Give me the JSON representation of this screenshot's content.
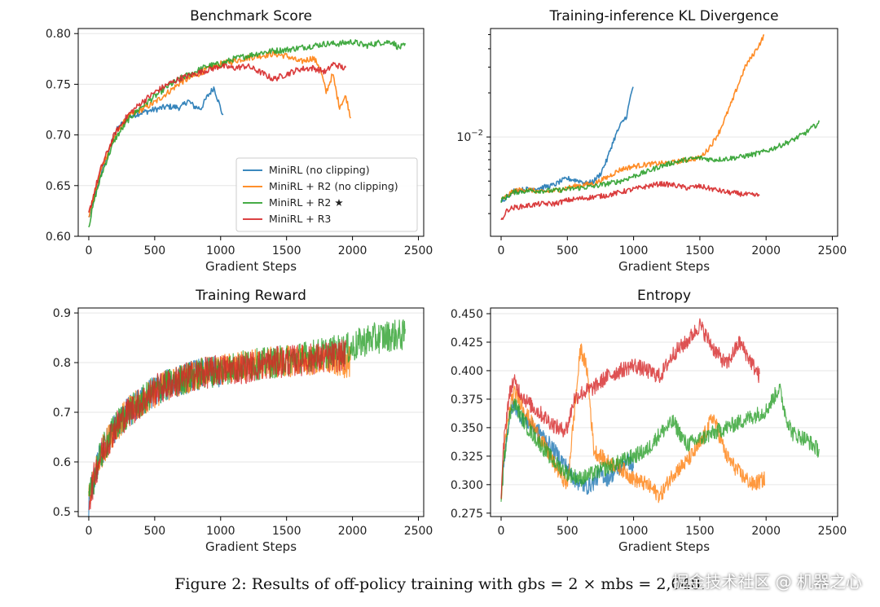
{
  "figure_caption": "Figure 2: Results of off-policy training with gbs = 2 × mbs = 2,048.",
  "watermark": "掘金技术社区 @ 机器之心",
  "colors": {
    "MiniRL (no clipping)": "#1f77b4",
    "MiniRL + R2 (no clipping)": "#ff7f0e",
    "MiniRL + R2 ★": "#2ca02c",
    "MiniRL + R3": "#d62728"
  },
  "chart_data": [
    {
      "type": "line",
      "title": "Benchmark Score",
      "xlabel": "Gradient Steps",
      "ylabel": "",
      "xlim": [
        -80,
        2540
      ],
      "ylim": [
        0.6,
        0.805
      ],
      "xticks": [
        0,
        500,
        1000,
        1500,
        2000,
        2500
      ],
      "yticks": [
        0.6,
        0.65,
        0.7,
        0.75,
        0.8
      ],
      "ytick_labels": [
        "0.60",
        "0.65",
        "0.70",
        "0.75",
        "0.80"
      ],
      "grid": "horizontal",
      "legend": {
        "position": "lower-right",
        "entries": [
          "MiniRL (no clipping)",
          "MiniRL + R2 (no clipping)",
          "MiniRL + R2 ★",
          "MiniRL + R3"
        ]
      },
      "series": [
        {
          "name": "MiniRL (no clipping)",
          "x": [
            0,
            50,
            100,
            150,
            200,
            300,
            400,
            500,
            600,
            700,
            750,
            800,
            850,
            900,
            950,
            1000,
            1020
          ],
          "y": [
            0.618,
            0.642,
            0.665,
            0.682,
            0.703,
            0.718,
            0.722,
            0.725,
            0.728,
            0.727,
            0.734,
            0.728,
            0.726,
            0.738,
            0.747,
            0.726,
            0.718
          ]
        },
        {
          "name": "MiniRL + R2 (no clipping)",
          "x": [
            0,
            50,
            100,
            150,
            200,
            300,
            400,
            500,
            600,
            700,
            800,
            900,
            1000,
            1100,
            1200,
            1300,
            1400,
            1500,
            1600,
            1700,
            1750,
            1800,
            1850,
            1900,
            1950,
            1990
          ],
          "y": [
            0.62,
            0.645,
            0.668,
            0.685,
            0.7,
            0.718,
            0.725,
            0.732,
            0.742,
            0.752,
            0.758,
            0.765,
            0.77,
            0.773,
            0.776,
            0.778,
            0.78,
            0.778,
            0.772,
            0.776,
            0.768,
            0.742,
            0.76,
            0.728,
            0.738,
            0.715
          ]
        },
        {
          "name": "MiniRL + R2 ★",
          "x": [
            0,
            50,
            100,
            150,
            200,
            300,
            400,
            500,
            600,
            700,
            800,
            900,
            1000,
            1100,
            1200,
            1300,
            1400,
            1500,
            1600,
            1700,
            1800,
            1900,
            2000,
            2100,
            2200,
            2300,
            2350,
            2400
          ],
          "y": [
            0.61,
            0.64,
            0.662,
            0.68,
            0.696,
            0.715,
            0.728,
            0.738,
            0.748,
            0.756,
            0.762,
            0.768,
            0.77,
            0.775,
            0.778,
            0.781,
            0.783,
            0.784,
            0.786,
            0.788,
            0.79,
            0.79,
            0.792,
            0.788,
            0.791,
            0.792,
            0.786,
            0.788
          ]
        },
        {
          "name": "MiniRL + R3",
          "x": [
            0,
            50,
            100,
            150,
            200,
            300,
            400,
            500,
            600,
            700,
            800,
            900,
            1000,
            1100,
            1200,
            1300,
            1400,
            1500,
            1600,
            1700,
            1800,
            1850,
            1900,
            1950
          ],
          "y": [
            0.622,
            0.648,
            0.67,
            0.686,
            0.702,
            0.72,
            0.732,
            0.742,
            0.75,
            0.756,
            0.76,
            0.764,
            0.768,
            0.766,
            0.768,
            0.762,
            0.755,
            0.76,
            0.765,
            0.766,
            0.762,
            0.77,
            0.768,
            0.765
          ]
        }
      ]
    },
    {
      "type": "line",
      "title": "Training-inference KL Divergence",
      "xlabel": "Gradient Steps",
      "ylabel": "",
      "yscale": "log",
      "xlim": [
        -80,
        2540
      ],
      "ylim": [
        0.0021,
        0.055
      ],
      "xticks": [
        0,
        500,
        1000,
        1500,
        2000,
        2500
      ],
      "yticks": [
        0.01
      ],
      "ytick_labels": [
        "10^-2"
      ],
      "grid": "horizontal",
      "series": [
        {
          "name": "MiniRL (no clipping)",
          "x": [
            0,
            50,
            100,
            200,
            300,
            400,
            450,
            500,
            550,
            600,
            650,
            700,
            750,
            800,
            850,
            900,
            950,
            1000
          ],
          "y": [
            0.0036,
            0.004,
            0.0043,
            0.0044,
            0.0045,
            0.0047,
            0.005,
            0.0052,
            0.0051,
            0.005,
            0.0048,
            0.005,
            0.0056,
            0.007,
            0.0095,
            0.012,
            0.014,
            0.023
          ]
        },
        {
          "name": "MiniRL + R2 (no clipping)",
          "x": [
            0,
            100,
            200,
            300,
            400,
            500,
            600,
            700,
            800,
            900,
            1000,
            1100,
            1200,
            1300,
            1400,
            1500,
            1550,
            1600,
            1650,
            1700,
            1750,
            1800,
            1850,
            1900,
            1950,
            1990
          ],
          "y": [
            0.0037,
            0.0043,
            0.0044,
            0.0042,
            0.0043,
            0.0045,
            0.0047,
            0.0048,
            0.0053,
            0.006,
            0.0063,
            0.0065,
            0.0066,
            0.0067,
            0.007,
            0.0072,
            0.008,
            0.0092,
            0.011,
            0.014,
            0.018,
            0.024,
            0.031,
            0.036,
            0.043,
            0.05
          ]
        },
        {
          "name": "MiniRL + R2 ★",
          "x": [
            0,
            100,
            200,
            300,
            400,
            500,
            600,
            700,
            800,
            900,
            1000,
            1100,
            1200,
            1300,
            1400,
            1500,
            1600,
            1700,
            1800,
            1900,
            2000,
            2100,
            2200,
            2300,
            2400
          ],
          "y": [
            0.0037,
            0.0042,
            0.0043,
            0.0043,
            0.0043,
            0.0044,
            0.0045,
            0.0046,
            0.0048,
            0.005,
            0.0054,
            0.0058,
            0.0063,
            0.0067,
            0.007,
            0.0072,
            0.007,
            0.0071,
            0.0073,
            0.0076,
            0.008,
            0.0087,
            0.0095,
            0.0107,
            0.0125
          ]
        },
        {
          "name": "MiniRL + R3",
          "x": [
            0,
            50,
            100,
            200,
            300,
            400,
            500,
            600,
            700,
            800,
            900,
            1000,
            1100,
            1200,
            1300,
            1400,
            1500,
            1600,
            1700,
            1800,
            1900,
            1950
          ],
          "y": [
            0.0027,
            0.0032,
            0.0033,
            0.0034,
            0.0035,
            0.0035,
            0.0037,
            0.0038,
            0.0039,
            0.004,
            0.0042,
            0.0044,
            0.0046,
            0.0048,
            0.0047,
            0.0045,
            0.0046,
            0.0044,
            0.0042,
            0.0041,
            0.004,
            0.004
          ]
        }
      ]
    },
    {
      "type": "line",
      "title": "Training Reward",
      "xlabel": "Gradient Steps",
      "ylabel": "",
      "xlim": [
        -80,
        2540
      ],
      "ylim": [
        0.49,
        0.91
      ],
      "xticks": [
        0,
        500,
        1000,
        1500,
        2000,
        2500
      ],
      "yticks": [
        0.5,
        0.6,
        0.7,
        0.8,
        0.9
      ],
      "ytick_labels": [
        "0.5",
        "0.6",
        "0.7",
        "0.8",
        "0.9"
      ],
      "grid": "horizontal",
      "noise": 0.032,
      "series": [
        {
          "name": "MiniRL (no clipping)",
          "x": [
            0,
            50,
            100,
            200,
            300,
            400,
            500,
            600,
            700,
            800,
            900,
            1000
          ],
          "y": [
            0.52,
            0.58,
            0.62,
            0.67,
            0.7,
            0.72,
            0.745,
            0.755,
            0.765,
            0.775,
            0.78,
            0.78
          ]
        },
        {
          "name": "MiniRL + R2 (no clipping)",
          "x": [
            0,
            50,
            100,
            200,
            300,
            400,
            500,
            600,
            700,
            800,
            900,
            1000,
            1200,
            1400,
            1600,
            1800,
            1990
          ],
          "y": [
            0.52,
            0.58,
            0.62,
            0.67,
            0.7,
            0.72,
            0.74,
            0.755,
            0.765,
            0.775,
            0.78,
            0.785,
            0.795,
            0.8,
            0.805,
            0.805,
            0.8
          ]
        },
        {
          "name": "MiniRL + R2 ★",
          "x": [
            0,
            50,
            100,
            200,
            300,
            400,
            500,
            600,
            700,
            800,
            900,
            1000,
            1200,
            1400,
            1600,
            1800,
            2000,
            2100,
            2200,
            2300,
            2400
          ],
          "y": [
            0.52,
            0.58,
            0.62,
            0.67,
            0.7,
            0.72,
            0.745,
            0.755,
            0.765,
            0.775,
            0.78,
            0.785,
            0.795,
            0.8,
            0.81,
            0.82,
            0.83,
            0.845,
            0.85,
            0.855,
            0.855
          ]
        },
        {
          "name": "MiniRL + R3",
          "x": [
            0,
            50,
            100,
            200,
            300,
            400,
            500,
            600,
            700,
            800,
            900,
            1000,
            1200,
            1400,
            1600,
            1800,
            1950
          ],
          "y": [
            0.52,
            0.58,
            0.62,
            0.67,
            0.7,
            0.72,
            0.745,
            0.755,
            0.765,
            0.775,
            0.78,
            0.785,
            0.79,
            0.8,
            0.805,
            0.81,
            0.815
          ]
        }
      ]
    },
    {
      "type": "line",
      "title": "Entropy",
      "xlabel": "Gradient Steps",
      "ylabel": "",
      "xlim": [
        -80,
        2540
      ],
      "ylim": [
        0.272,
        0.455
      ],
      "xticks": [
        0,
        500,
        1000,
        1500,
        2000,
        2500
      ],
      "yticks": [
        0.275,
        0.3,
        0.325,
        0.35,
        0.375,
        0.4,
        0.425,
        0.45
      ],
      "ytick_labels": [
        "0.275",
        "0.300",
        "0.325",
        "0.350",
        "0.375",
        "0.400",
        "0.425",
        "0.450"
      ],
      "grid": "horizontal",
      "noise": 0.007,
      "series": [
        {
          "name": "MiniRL (no clipping)",
          "x": [
            0,
            20,
            50,
            80,
            100,
            150,
            200,
            300,
            400,
            500,
            550,
            600,
            650,
            700,
            750,
            800,
            850,
            900,
            950,
            1000
          ],
          "y": [
            0.285,
            0.32,
            0.35,
            0.368,
            0.37,
            0.36,
            0.355,
            0.345,
            0.33,
            0.315,
            0.305,
            0.3,
            0.298,
            0.302,
            0.31,
            0.305,
            0.31,
            0.315,
            0.322,
            0.315
          ]
        },
        {
          "name": "MiniRL + R2 (no clipping)",
          "x": [
            0,
            20,
            50,
            80,
            100,
            150,
            200,
            300,
            400,
            500,
            550,
            600,
            650,
            700,
            800,
            900,
            1000,
            1100,
            1200,
            1300,
            1400,
            1500,
            1600,
            1700,
            1800,
            1900,
            1990
          ],
          "y": [
            0.285,
            0.325,
            0.355,
            0.375,
            0.38,
            0.372,
            0.36,
            0.34,
            0.318,
            0.3,
            0.36,
            0.42,
            0.4,
            0.33,
            0.32,
            0.315,
            0.305,
            0.3,
            0.29,
            0.31,
            0.32,
            0.335,
            0.36,
            0.325,
            0.31,
            0.3,
            0.305
          ]
        },
        {
          "name": "MiniRL + R2 ★",
          "x": [
            0,
            20,
            50,
            80,
            100,
            150,
            200,
            300,
            400,
            500,
            600,
            700,
            800,
            900,
            1000,
            1100,
            1200,
            1300,
            1400,
            1500,
            1600,
            1700,
            1800,
            1900,
            2000,
            2100,
            2150,
            2200,
            2300,
            2400
          ],
          "y": [
            0.285,
            0.32,
            0.35,
            0.368,
            0.372,
            0.36,
            0.35,
            0.335,
            0.32,
            0.31,
            0.305,
            0.31,
            0.315,
            0.32,
            0.325,
            0.33,
            0.345,
            0.355,
            0.335,
            0.34,
            0.345,
            0.35,
            0.355,
            0.36,
            0.365,
            0.385,
            0.36,
            0.345,
            0.34,
            0.33
          ]
        },
        {
          "name": "MiniRL + R3",
          "x": [
            0,
            20,
            50,
            80,
            100,
            150,
            200,
            300,
            400,
            450,
            500,
            550,
            600,
            700,
            800,
            900,
            1000,
            1100,
            1200,
            1300,
            1400,
            1500,
            1600,
            1700,
            1800,
            1900,
            1950
          ],
          "y": [
            0.29,
            0.335,
            0.37,
            0.388,
            0.39,
            0.38,
            0.372,
            0.362,
            0.352,
            0.348,
            0.35,
            0.375,
            0.38,
            0.385,
            0.395,
            0.4,
            0.405,
            0.4,
            0.395,
            0.415,
            0.425,
            0.44,
            0.42,
            0.405,
            0.425,
            0.405,
            0.395
          ]
        }
      ]
    }
  ]
}
